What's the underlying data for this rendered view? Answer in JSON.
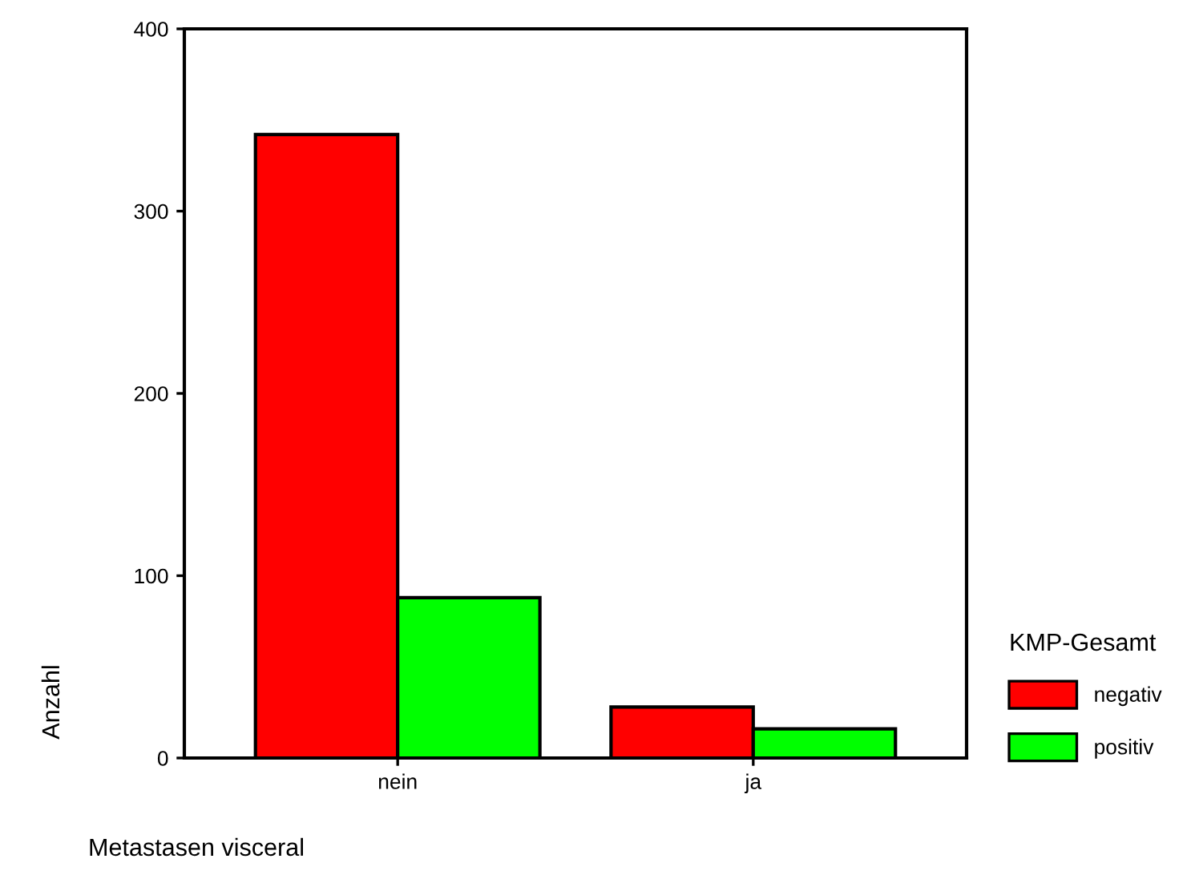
{
  "chart_data": {
    "type": "bar",
    "categories": [
      "nein",
      "ja"
    ],
    "xlabel": "Metastasen visceral",
    "ylabel": "Anzahl",
    "legend_title": "KMP-Gesamt",
    "legend": "right",
    "ylim": [
      0,
      400
    ],
    "yticks": [
      0,
      100,
      200,
      300,
      400
    ],
    "grid": false,
    "series": [
      {
        "name": "negativ",
        "color": "#ff0000",
        "values": [
          342,
          28
        ]
      },
      {
        "name": "positiv",
        "color": "#00ff00",
        "values": [
          88,
          16
        ]
      }
    ]
  }
}
